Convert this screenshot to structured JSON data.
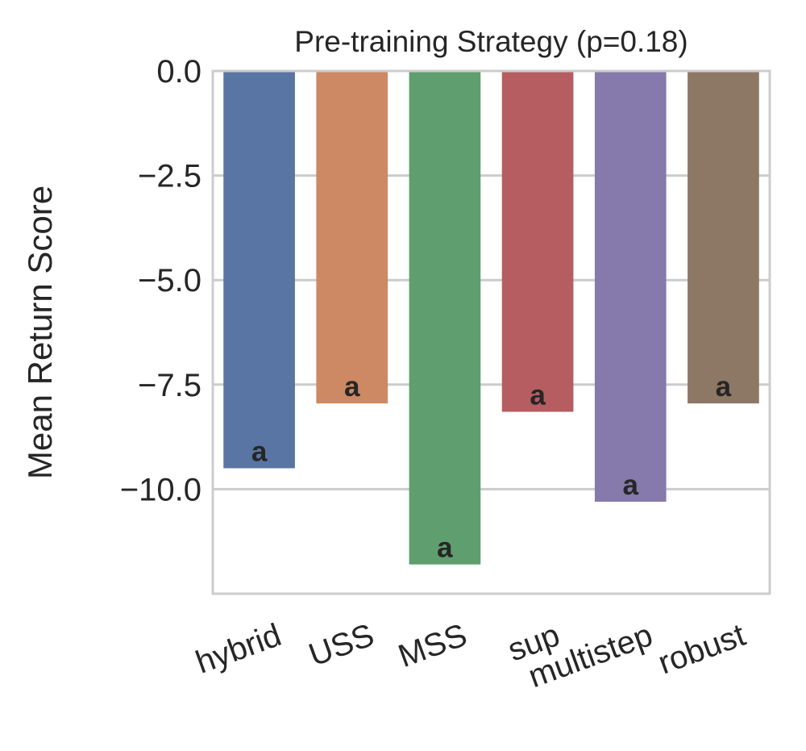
{
  "chart_data": {
    "type": "bar",
    "title": "Pre-training Strategy  (p=0.18)",
    "xlabel": "",
    "ylabel": "Mean Return Score",
    "categories": [
      "hybrid",
      "USS",
      "MSS",
      "sup",
      "multistep",
      "robust"
    ],
    "values": [
      -9.5,
      -7.95,
      -11.8,
      -8.15,
      -10.3,
      -7.95
    ],
    "bar_labels": [
      "a",
      "a",
      "a",
      "a",
      "a",
      "a"
    ],
    "colors": [
      "#5875a4",
      "#cc8963",
      "#5f9e6e",
      "#b55d60",
      "#857aab",
      "#8d7866"
    ],
    "ylim": [
      -12.5,
      0.0
    ],
    "yticks": [
      0.0,
      -2.5,
      -5.0,
      -7.5,
      -10.0
    ],
    "ytick_labels": [
      "0.0",
      "−2.5",
      "−5.0",
      "−7.5",
      "−10.0"
    ],
    "grid": true
  }
}
